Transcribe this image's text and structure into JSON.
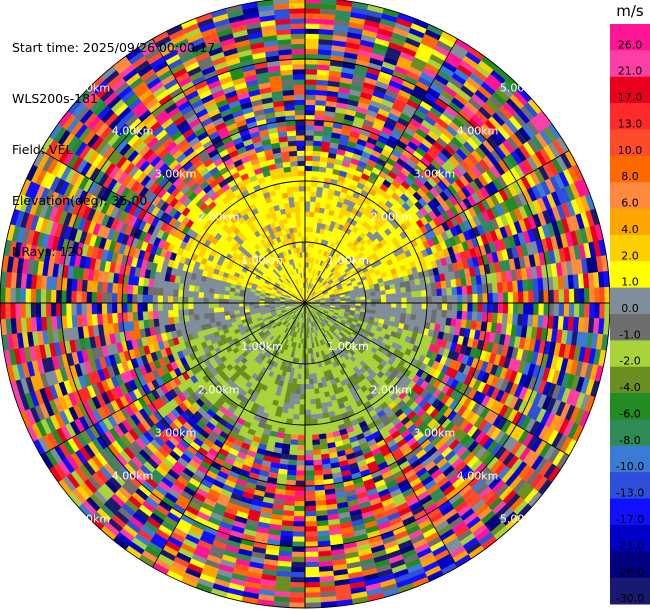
{
  "info": {
    "start_time": "Start time: 2025/09/26 00:00:17",
    "site": "WLS200s-181",
    "field": "Field: VEL",
    "elevation": "Elevation(deg): 35.00",
    "nrays": "NRays: 120"
  },
  "chart_data": {
    "type": "heatmap",
    "projection": "polar (PPI)",
    "field": "VEL",
    "nrays": 120,
    "elevation_deg": 35.0,
    "max_range_km": 5.0,
    "range_rings_km": [
      1.0,
      2.0,
      3.0,
      4.0,
      5.0
    ],
    "ring_label_texts": [
      "1.00km",
      "2.00km",
      "3.00km",
      "4.00km",
      "5.00km"
    ],
    "colorbar": {
      "unit": "m/s",
      "tick_labels": [
        "26.0",
        "21.0",
        "17.0",
        "13.0",
        "10.0",
        "8.0",
        "6.0",
        "4.0",
        "2.0",
        "1.0",
        "0.0",
        "-1.0",
        "-2.0",
        "-4.0",
        "-6.0",
        "-8.0",
        "-10.0",
        "-13.0",
        "-17.0",
        "-21.0",
        "-26.0",
        "-30.0"
      ],
      "colors": [
        "#ff1493",
        "#ff3da6",
        "#e8001c",
        "#ff2a2a",
        "#ff4b2b",
        "#ff6a00",
        "#ff8a3d",
        "#ffa500",
        "#ffd000",
        "#ffff00",
        "#7f8e9a",
        "#6e6e6e",
        "#a8d43a",
        "#6b8e23",
        "#228b22",
        "#2e8b57",
        "#3a7bd5",
        "#2d4fd9",
        "#1010ff",
        "#0000c8",
        "#000080",
        "#191970"
      ]
    },
    "observed_pattern": {
      "near_field_north": "positive velocities ~1 to 4 m/s (yellow)",
      "near_field_south": "negative velocities ~-1 to -2 m/s (yellow-green)",
      "near_field_west_east": "near zero (gray)",
      "beyond_approx_km": 2.2,
      "far_field": "noise across the full color range"
    }
  }
}
